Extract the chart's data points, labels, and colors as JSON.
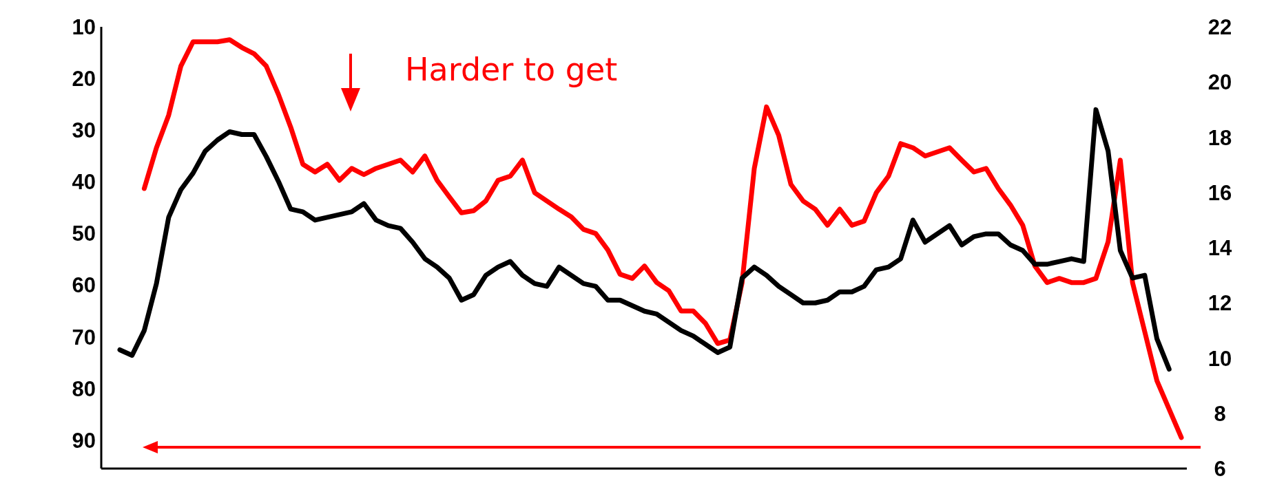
{
  "chart_data": {
    "type": "line",
    "categories": [
      null,
      null,
      null,
      null,
      null,
      null,
      null,
      null,
      null,
      null,
      null,
      null,
      null,
      null,
      null,
      null,
      null,
      null,
      null,
      null,
      null,
      null,
      null,
      null,
      null,
      null,
      null,
      null,
      null,
      null,
      null,
      null,
      null,
      null,
      null,
      null,
      null,
      null,
      null,
      null,
      null,
      null,
      null,
      null,
      null,
      null,
      null,
      null,
      null,
      null,
      null,
      null,
      null,
      null,
      null,
      null,
      null,
      null,
      null,
      null,
      null,
      null,
      null,
      null,
      null,
      null,
      null,
      null,
      null,
      null,
      null,
      null,
      null,
      null,
      null,
      null,
      null,
      null,
      null,
      null,
      null,
      null,
      null,
      null,
      null,
      null,
      null,
      null
    ],
    "series": [
      {
        "color": "#ff0000",
        "values": [
          null,
          null,
          41.3,
          33.4,
          27.1,
          17.6,
          12.9,
          12.9,
          12.9,
          12.5,
          14.0,
          15.2,
          17.6,
          23.1,
          29.4,
          36.6,
          38.1,
          36.6,
          39.7,
          37.4,
          38.6,
          37.4,
          36.6,
          35.8,
          38.1,
          35.0,
          39.7,
          42.9,
          46.0,
          45.6,
          43.7,
          39.7,
          38.9,
          35.8,
          42.1,
          43.7,
          45.3,
          46.8,
          49.2,
          50.0,
          53.2,
          57.9,
          58.7,
          56.3,
          59.5,
          61.1,
          65.0,
          65.0,
          67.4,
          71.3,
          70.6,
          59.5,
          37.4,
          25.5,
          31.0,
          40.5,
          43.7,
          45.3,
          48.4,
          45.3,
          48.4,
          47.6,
          42.1,
          38.9,
          32.6,
          33.4,
          35.0,
          34.2,
          33.4,
          35.8,
          38.1,
          37.4,
          41.3,
          44.5,
          48.4,
          56.3,
          59.5,
          58.7,
          59.5,
          59.5,
          58.7,
          51.6,
          35.8,
          59.5,
          69.0,
          78.5,
          84.0,
          89.5
        ]
      },
      {
        "color": "#000000",
        "axis": "y2",
        "values": [
          10.3,
          10.1,
          11.0,
          12.7,
          15.1,
          16.1,
          16.7,
          17.5,
          17.9,
          18.2,
          18.1,
          18.1,
          17.3,
          16.4,
          15.4,
          15.3,
          15.0,
          15.1,
          15.2,
          15.3,
          15.6,
          15.0,
          14.8,
          14.7,
          14.2,
          13.6,
          13.3,
          12.9,
          12.1,
          12.3,
          13.0,
          13.3,
          13.5,
          13.0,
          12.7,
          12.6,
          13.3,
          13.0,
          12.7,
          12.6,
          12.1,
          12.1,
          11.9,
          11.7,
          11.6,
          11.3,
          11.0,
          10.8,
          10.5,
          10.2,
          10.4,
          12.9,
          13.3,
          13.0,
          12.6,
          12.3,
          12.0,
          12.0,
          12.1,
          12.4,
          12.4,
          12.6,
          13.2,
          13.3,
          13.6,
          15.0,
          14.2,
          14.5,
          14.8,
          14.1,
          14.4,
          14.5,
          14.5,
          14.1,
          13.9,
          13.4,
          13.4,
          13.5,
          13.6,
          13.5,
          19.0,
          17.5,
          13.9,
          12.9,
          13.0,
          10.7,
          9.6,
          null
        ]
      }
    ],
    "ylim": [
      95.5,
      10
    ],
    "yticks": [
      10,
      20,
      30,
      40,
      50,
      60,
      70,
      80,
      90
    ],
    "y2lim": [
      6,
      22
    ],
    "y2ticks": [
      6,
      8,
      10,
      12,
      14,
      16,
      18,
      20,
      22
    ],
    "tick_labels": "y",
    "annotations": [
      "Harder to get"
    ]
  }
}
